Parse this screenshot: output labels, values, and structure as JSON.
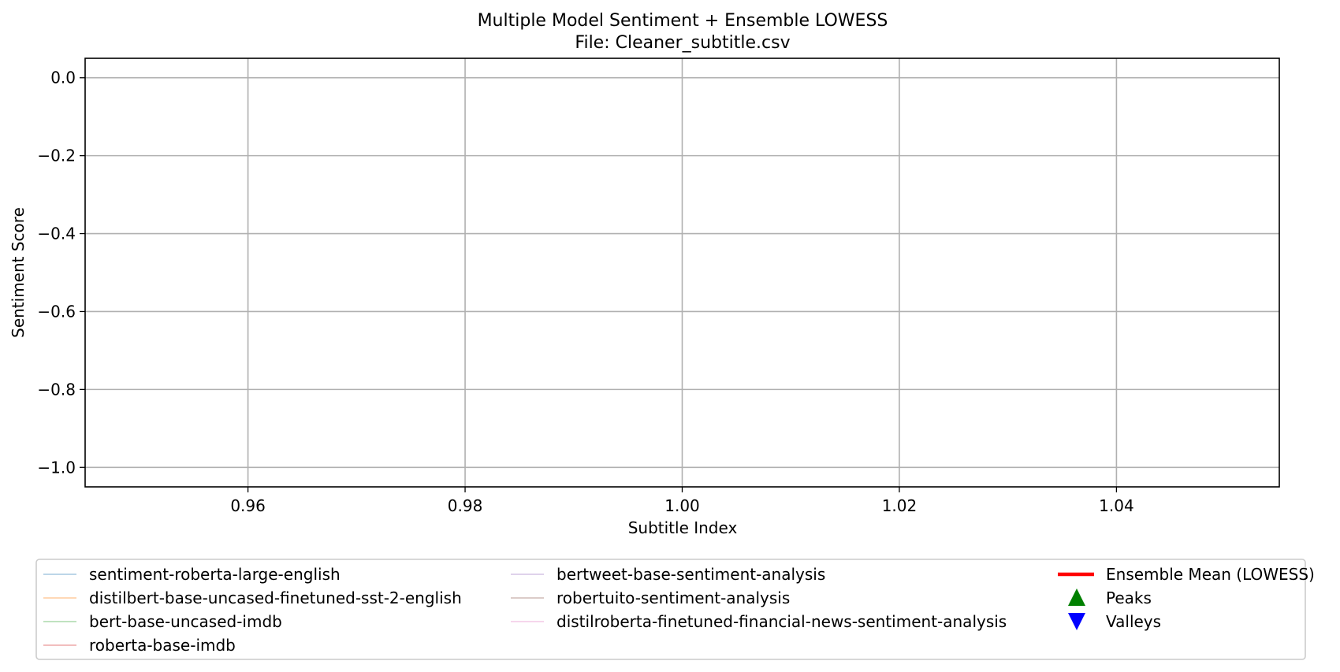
{
  "chart_data": {
    "type": "line",
    "title": "Multiple Model Sentiment + Ensemble LOWESS",
    "subtitle": "File: Cleaner_subtitle.csv",
    "xlabel": "Subtitle Index",
    "ylabel": "Sentiment Score",
    "xlim": [
      0.945,
      1.055
    ],
    "ylim": [
      -1.05,
      0.05
    ],
    "x_ticks": [
      0.96,
      0.98,
      1.0,
      1.02,
      1.04
    ],
    "x_tick_labels": [
      "0.96",
      "0.98",
      "1.00",
      "1.02",
      "1.04"
    ],
    "y_ticks": [
      0.0,
      -0.2,
      -0.4,
      -0.6,
      -0.8,
      -1.0
    ],
    "y_tick_labels": [
      "0.0",
      "−0.2",
      "−0.4",
      "−0.6",
      "−0.8",
      "−1.0"
    ],
    "grid": true,
    "legend_placement": "below",
    "series": [
      {
        "name": "sentiment-roberta-large-english",
        "color": "#1f77b4",
        "x": [],
        "values": []
      },
      {
        "name": "distilbert-base-uncased-finetuned-sst-2-english",
        "color": "#ff7f0e",
        "x": [],
        "values": []
      },
      {
        "name": "bert-base-uncased-imdb",
        "color": "#2ca02c",
        "x": [],
        "values": []
      },
      {
        "name": "roberta-base-imdb",
        "color": "#d62728",
        "x": [],
        "values": []
      },
      {
        "name": "bertweet-base-sentiment-analysis",
        "color": "#9467bd",
        "x": [],
        "values": []
      },
      {
        "name": "robertuito-sentiment-analysis",
        "color": "#8c564b",
        "x": [],
        "values": []
      },
      {
        "name": "distilroberta-finetuned-financial-news-sentiment-analysis",
        "color": "#e377c2",
        "x": [],
        "values": []
      },
      {
        "name": "Ensemble Mean (LOWESS)",
        "color": "#ff0000",
        "x": [],
        "values": []
      }
    ],
    "markers": [
      {
        "name": "Peaks",
        "color": "#008000",
        "shape": "triangle-up",
        "x": [],
        "values": []
      },
      {
        "name": "Valleys",
        "color": "#0000ff",
        "shape": "triangle-down",
        "x": [],
        "values": []
      }
    ]
  }
}
